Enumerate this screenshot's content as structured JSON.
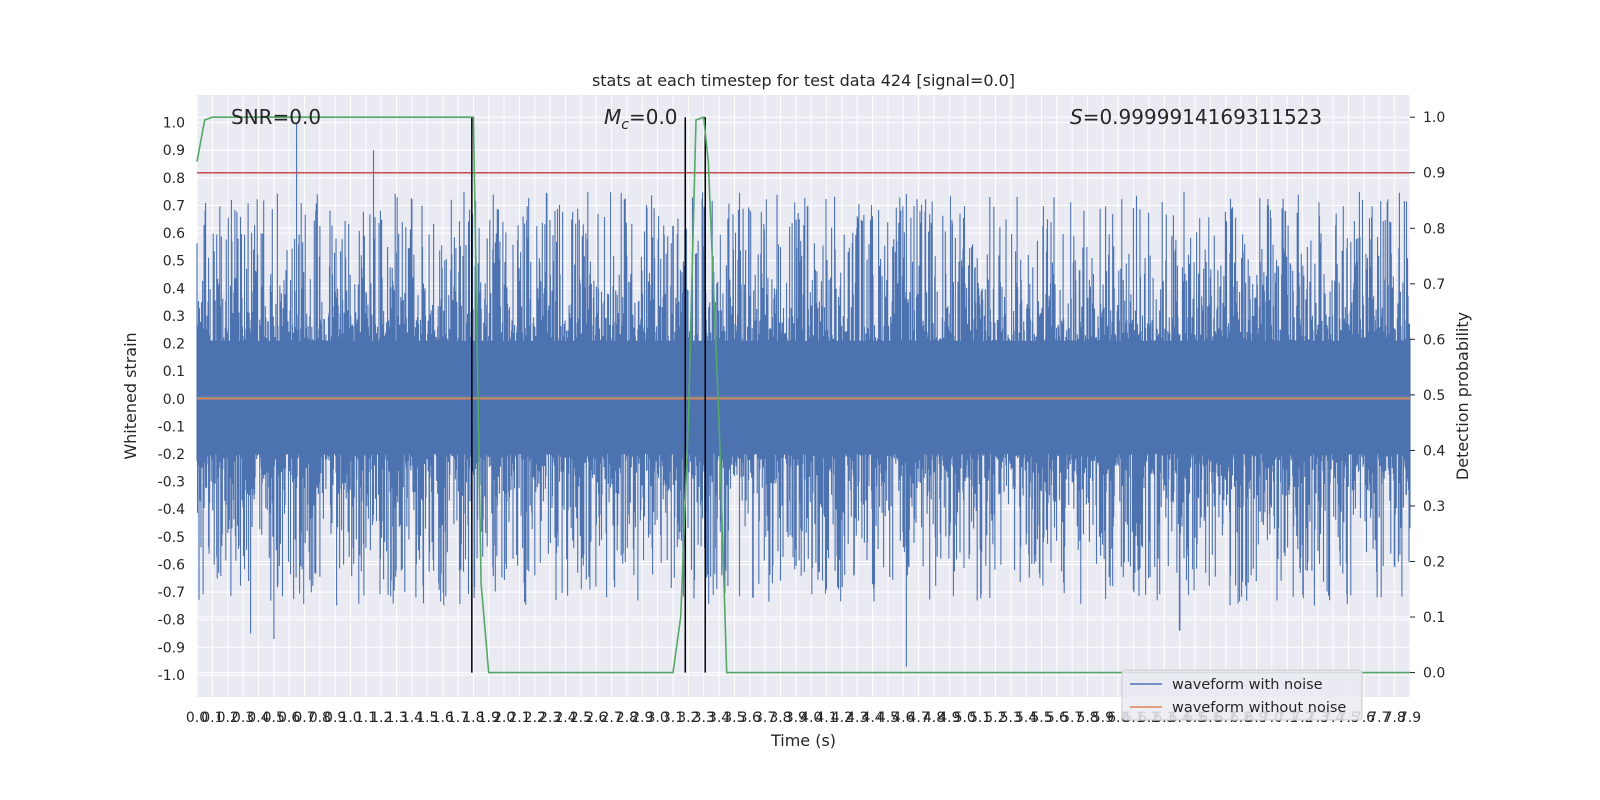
{
  "chart_data": {
    "type": "line",
    "title": "stats at each timestep for test data 424 [signal=0.0]",
    "xlabel": "Time (s)",
    "ylabel": "Whitened strain",
    "y2label": "Detection probability",
    "xlim": [
      0.0,
      7.9
    ],
    "ylim": [
      -1.08,
      1.1
    ],
    "y2lim": [
      -0.044,
      1.04
    ],
    "grid": true,
    "legend_placement": "lower right",
    "x_ticks": [
      "0.0",
      "0.1",
      "0.2",
      "0.3",
      "0.4",
      "0.5",
      "0.6",
      "0.7",
      "0.8",
      "0.9",
      "1.0",
      "1.1",
      "1.2",
      "1.3",
      "1.4",
      "1.5",
      "1.6",
      "1.7",
      "1.8",
      "1.9",
      "2.0",
      "2.1",
      "2.2",
      "2.3",
      "2.4",
      "2.5",
      "2.6",
      "2.7",
      "2.8",
      "2.9",
      "3.0",
      "3.1",
      "3.2",
      "3.3",
      "3.4",
      "3.5",
      "3.6",
      "3.7",
      "3.8",
      "3.9",
      "4.0",
      "4.1",
      "4.2",
      "4.3",
      "4.4",
      "4.5",
      "4.6",
      "4.7",
      "4.8",
      "4.9",
      "5.0",
      "5.1",
      "5.2",
      "5.3",
      "5.4",
      "5.5",
      "5.6",
      "5.7",
      "5.8",
      "5.9",
      "6.0",
      "6.1",
      "6.2",
      "6.3",
      "6.4",
      "6.5",
      "6.6",
      "6.7",
      "6.8",
      "6.9",
      "7.0",
      "7.1",
      "7.2",
      "7.3",
      "7.4",
      "7.5",
      "7.6",
      "7.7",
      "7.8",
      "7.9"
    ],
    "y_ticks": [
      "1.0",
      "0.9",
      "0.8",
      "0.7",
      "0.6",
      "0.5",
      "0.4",
      "0.3",
      "0.2",
      "0.1",
      "0.0",
      "-0.1",
      "-0.2",
      "-0.3",
      "-0.4",
      "-0.5",
      "-0.6",
      "-0.7",
      "-0.8",
      "-0.9",
      "-1.0"
    ],
    "y2_ticks": [
      "1.0",
      "0.9",
      "0.8",
      "0.7",
      "0.6",
      "0.5",
      "0.4",
      "0.3",
      "0.2",
      "0.1",
      "0.0"
    ],
    "annotations": {
      "snr": "SNR=0.0",
      "mc": "=0.0",
      "s": "=0.9999914169311523"
    },
    "series": [
      {
        "name": "waveform with noise",
        "color": "#4c72b0",
        "description_peaks": [
          {
            "x": 0.65,
            "y": 1.0
          },
          {
            "x": 1.15,
            "y": 0.9
          },
          {
            "x": 0.35,
            "y": -0.85
          },
          {
            "x": 0.5,
            "y": -0.87
          },
          {
            "x": 4.62,
            "y": -0.97
          },
          {
            "x": 6.4,
            "y": -0.84
          }
        ]
      },
      {
        "name": "waveform without noise",
        "color": "#dd8452",
        "y_constant": 0.0
      },
      {
        "name": "detection probability",
        "color": "#55a868",
        "axis": "right",
        "points": [
          [
            0.0,
            0.92
          ],
          [
            0.05,
            0.995
          ],
          [
            0.1,
            1.0
          ],
          [
            1.8,
            1.0
          ],
          [
            1.85,
            0.16
          ],
          [
            1.9,
            0.0
          ],
          [
            3.1,
            0.0
          ],
          [
            3.15,
            0.1
          ],
          [
            3.2,
            0.45
          ],
          [
            3.25,
            0.995
          ],
          [
            3.3,
            1.0
          ],
          [
            3.33,
            0.92
          ],
          [
            3.4,
            0.45
          ],
          [
            3.45,
            0.0
          ],
          [
            7.9,
            0.0
          ]
        ]
      }
    ],
    "threshold_line": {
      "y2": 0.9,
      "color": "#c44e52"
    },
    "vertical_lines": [
      {
        "x": 1.79,
        "color": "#000000"
      },
      {
        "x": 3.18,
        "color": "#000000"
      },
      {
        "x": 3.31,
        "color": "#000000"
      }
    ],
    "legend": [
      "waveform with noise",
      "waveform without noise"
    ]
  }
}
